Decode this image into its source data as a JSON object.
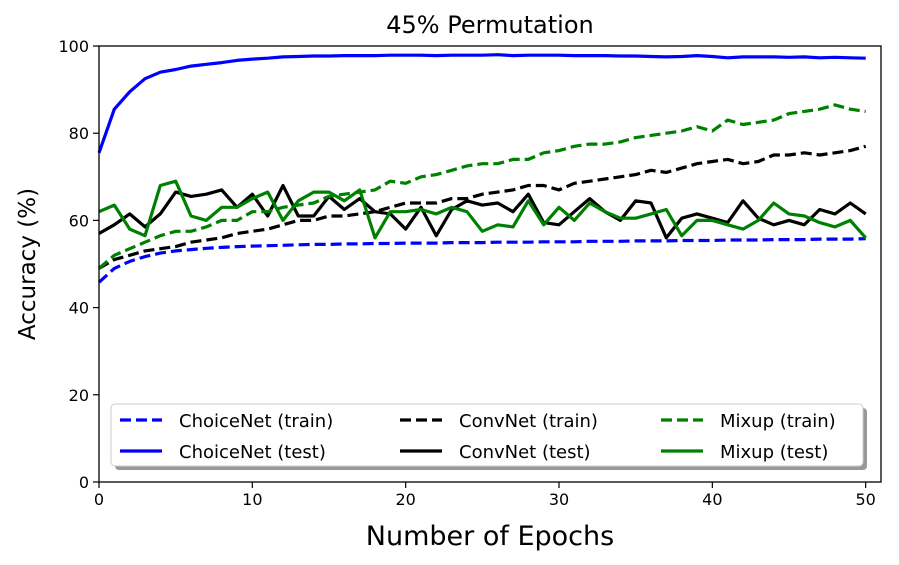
{
  "chart_data": {
    "type": "line",
    "title": "45% Permutation",
    "xlabel": "Number of Epochs",
    "ylabel": "Accuracy (%)",
    "xlim": [
      0,
      51
    ],
    "ylim": [
      0,
      100
    ],
    "xticks": [
      "0",
      "10",
      "20",
      "30",
      "40",
      "50"
    ],
    "yticks": [
      "0",
      "20",
      "40",
      "60",
      "80",
      "100"
    ],
    "grid": false,
    "legend_position": "bottom",
    "x": [
      0,
      1,
      2,
      3,
      4,
      5,
      6,
      7,
      8,
      9,
      10,
      11,
      12,
      13,
      14,
      15,
      16,
      17,
      18,
      19,
      20,
      21,
      22,
      23,
      24,
      25,
      26,
      27,
      28,
      29,
      30,
      31,
      32,
      33,
      34,
      35,
      36,
      37,
      38,
      39,
      40,
      41,
      42,
      43,
      44,
      45,
      46,
      47,
      48,
      49,
      50
    ],
    "series": [
      {
        "name": "ChoiceNet (train)",
        "color": "#0000ff",
        "style": "dashed",
        "values": [
          45.8,
          49.0,
          50.6,
          51.7,
          52.5,
          53.0,
          53.3,
          53.6,
          53.8,
          54.0,
          54.1,
          54.2,
          54.3,
          54.4,
          54.5,
          54.5,
          54.6,
          54.6,
          54.7,
          54.7,
          54.8,
          54.8,
          54.8,
          54.9,
          54.9,
          54.9,
          55.0,
          55.0,
          55.0,
          55.1,
          55.1,
          55.1,
          55.2,
          55.2,
          55.2,
          55.3,
          55.3,
          55.3,
          55.4,
          55.4,
          55.4,
          55.5,
          55.5,
          55.5,
          55.6,
          55.6,
          55.6,
          55.7,
          55.7,
          55.7,
          55.8
        ]
      },
      {
        "name": "ChoiceNet (test)",
        "color": "#0000ff",
        "style": "solid",
        "values": [
          75.5,
          85.5,
          89.5,
          92.5,
          94.0,
          94.6,
          95.4,
          95.8,
          96.2,
          96.7,
          97.0,
          97.2,
          97.5,
          97.6,
          97.7,
          97.7,
          97.8,
          97.8,
          97.8,
          97.9,
          97.9,
          97.9,
          97.8,
          97.9,
          97.9,
          97.9,
          98.0,
          97.8,
          97.9,
          97.9,
          97.9,
          97.8,
          97.8,
          97.8,
          97.7,
          97.7,
          97.6,
          97.5,
          97.6,
          97.8,
          97.6,
          97.3,
          97.5,
          97.5,
          97.5,
          97.4,
          97.5,
          97.3,
          97.4,
          97.3,
          97.2
        ]
      },
      {
        "name": "ConvNet (train)",
        "color": "#000000",
        "style": "dashed",
        "values": [
          49.0,
          51.0,
          52.0,
          53.0,
          53.5,
          54.0,
          55.0,
          55.5,
          56.0,
          57.0,
          57.5,
          58.0,
          59.0,
          60.0,
          60.0,
          61.0,
          61.0,
          61.5,
          62.0,
          63.0,
          64.0,
          64.0,
          64.0,
          65.0,
          65.0,
          66.0,
          66.5,
          67.0,
          68.0,
          68.0,
          67.0,
          68.5,
          69.0,
          69.5,
          70.0,
          70.5,
          71.5,
          71.0,
          72.0,
          73.0,
          73.5,
          74.0,
          73.0,
          73.5,
          75.0,
          75.0,
          75.5,
          75.0,
          75.5,
          76.0,
          77.0
        ]
      },
      {
        "name": "ConvNet (test)",
        "color": "#000000",
        "style": "solid",
        "values": [
          57.0,
          59.0,
          61.5,
          58.5,
          61.5,
          66.5,
          65.5,
          66.0,
          67.0,
          63.0,
          66.0,
          61.0,
          68.0,
          61.0,
          61.0,
          65.5,
          62.5,
          65.0,
          62.0,
          61.5,
          58.0,
          63.0,
          56.5,
          62.5,
          64.5,
          63.5,
          64.0,
          62.0,
          66.0,
          59.5,
          59.0,
          62.0,
          65.0,
          62.0,
          60.0,
          64.5,
          64.0,
          56.0,
          60.5,
          61.5,
          60.5,
          59.5,
          64.5,
          60.5,
          59.0,
          60.0,
          59.0,
          62.5,
          61.5,
          64.0,
          61.5
        ]
      },
      {
        "name": "Mixup (train)",
        "color": "#008000",
        "style": "dashed",
        "values": [
          49.0,
          52.0,
          53.5,
          55.0,
          56.5,
          57.5,
          57.5,
          58.5,
          60.0,
          60.0,
          62.0,
          62.0,
          63.0,
          63.5,
          64.0,
          65.5,
          66.0,
          66.5,
          67.0,
          69.0,
          68.5,
          70.0,
          70.5,
          71.5,
          72.5,
          73.0,
          73.0,
          74.0,
          74.0,
          75.5,
          76.0,
          77.0,
          77.5,
          77.5,
          78.0,
          79.0,
          79.5,
          80.0,
          80.5,
          81.5,
          80.5,
          83.0,
          82.0,
          82.5,
          83.0,
          84.5,
          85.0,
          85.5,
          86.5,
          85.5,
          85.0
        ]
      },
      {
        "name": "Mixup (test)",
        "color": "#008000",
        "style": "solid",
        "values": [
          62.0,
          63.5,
          58.0,
          56.5,
          68.0,
          69.0,
          61.0,
          60.0,
          63.0,
          63.0,
          65.0,
          66.5,
          60.0,
          64.5,
          66.5,
          66.5,
          64.5,
          67.0,
          56.0,
          62.0,
          62.0,
          62.5,
          61.5,
          63.0,
          62.0,
          57.5,
          59.0,
          58.5,
          64.5,
          59.0,
          63.0,
          60.0,
          64.0,
          62.0,
          60.5,
          60.5,
          61.5,
          62.5,
          56.5,
          60.0,
          60.0,
          59.0,
          58.0,
          60.0,
          64.0,
          61.5,
          61.0,
          59.5,
          58.5,
          60.0,
          56.0
        ]
      }
    ]
  }
}
